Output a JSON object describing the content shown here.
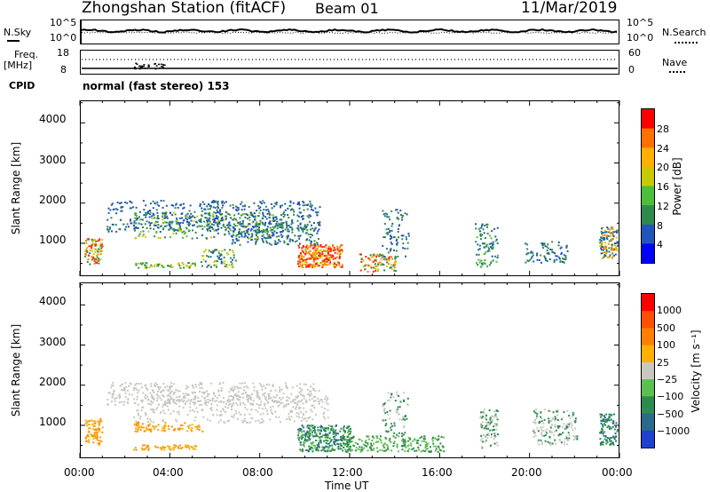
{
  "header": {
    "station": "Zhongshan Station (fitACF)",
    "beam": "Beam 01",
    "date": "11/Mar/2019"
  },
  "top_panels": {
    "nsky_label": "N.Sky",
    "nsky_ticks": [
      "10^5",
      "10^0"
    ],
    "nsearch_label": "N.Search",
    "nsearch_ticks": [
      "10^5",
      "10^0"
    ],
    "freq_label_1": "Freq.",
    "freq_label_2": "[MHz]",
    "freq_ticks": [
      "18",
      "8"
    ],
    "nave_label": "Nave",
    "nave_ticks": [
      "60",
      "0"
    ],
    "cpid_label": "CPID",
    "cpid_text": "normal (fast stereo) 153"
  },
  "chart_data": [
    {
      "type": "heatmap",
      "name": "power",
      "ylabel": "Slant Range [km]",
      "yticks": [
        "4000",
        "3000",
        "2000",
        "1000"
      ],
      "ylim": [
        180,
        4560
      ],
      "xlim": [
        0,
        24
      ],
      "colorbar_label": "Power [dB]",
      "colorbar_ticks": [
        "28",
        "24",
        "20",
        "16",
        "12",
        "8",
        "4"
      ],
      "colors": [
        "#0000ff",
        "#2255bb",
        "#2f8a4e",
        "#4cbf3a",
        "#c8c800",
        "#ffb000",
        "#ff7000",
        "#ff0000"
      ]
    },
    {
      "type": "heatmap",
      "name": "velocity",
      "ylabel": "Slant Range [km]",
      "yticks": [
        "4000",
        "3000",
        "2000",
        "1000"
      ],
      "ylim": [
        180,
        4560
      ],
      "xlim": [
        0,
        24
      ],
      "colorbar_label": "Velocity [m s⁻¹]",
      "colorbar_ticks": [
        "1000",
        "500",
        "100",
        "25",
        "−25",
        "−100",
        "−500",
        "−1000"
      ],
      "colors": [
        "#2040d0",
        "#2a6a8a",
        "#2f8a4e",
        "#5cc050",
        "#c8c8c0",
        "#ffb000",
        "#ff8000",
        "#ff5000",
        "#ff0000"
      ]
    }
  ],
  "xaxis": {
    "ticks": [
      "00:00",
      "04:00",
      "08:00",
      "12:00",
      "16:00",
      "20:00",
      "00:00"
    ],
    "label": "Time UT"
  }
}
